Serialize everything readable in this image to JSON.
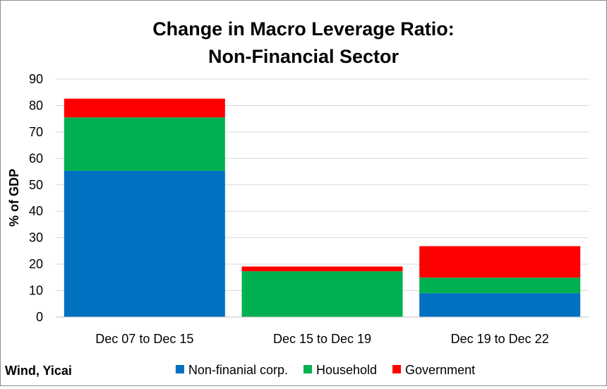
{
  "chart_data": {
    "type": "bar",
    "stacked": true,
    "title": [
      "Change in Macro Leverage Ratio:",
      "Non-Financial Sector"
    ],
    "ylabel": "% of GDP",
    "xlabel": "",
    "ylim": [
      0,
      90
    ],
    "yticks": [
      0,
      10,
      20,
      30,
      40,
      50,
      60,
      70,
      80,
      90
    ],
    "grid": true,
    "legend_position": "bottom",
    "categories": [
      "Dec 07 to Dec 15",
      "Dec 15 to Dec 19",
      "Dec 19 to Dec 22"
    ],
    "series": [
      {
        "name": "Non-finanial corp.",
        "color": "#0070c0",
        "values": [
          55.3,
          0,
          9.0
        ]
      },
      {
        "name": "Household",
        "color": "#00b050",
        "values": [
          20.2,
          17.3,
          5.9
        ]
      },
      {
        "name": "Government",
        "color": "#ff0000",
        "values": [
          7.1,
          1.8,
          11.9
        ]
      }
    ],
    "source": "Wind, Yicai"
  }
}
